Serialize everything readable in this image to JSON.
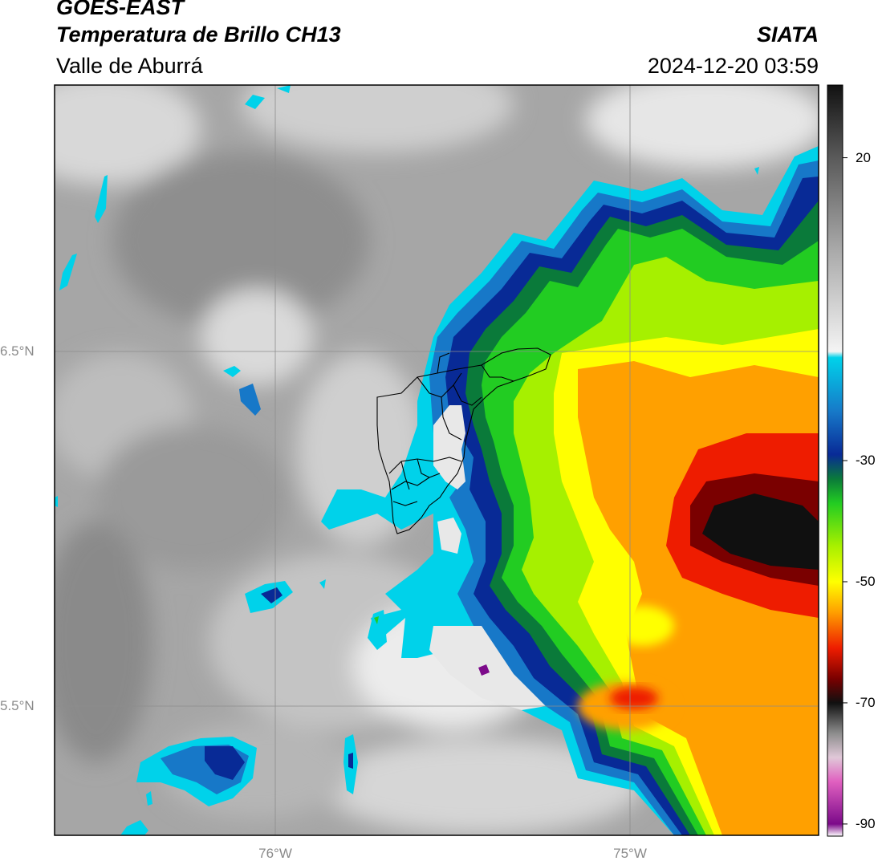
{
  "header": {
    "satellite": "GOES-EAST",
    "product": "Temperatura de Brillo CH13",
    "region": "Valle de Aburrá",
    "organization": "SIATA",
    "timestamp": "2024-12-20 03:59"
  },
  "axes": {
    "lat_ticks": [
      "6.5°N",
      "5.5°N"
    ],
    "lon_ticks": [
      "76°W",
      "75°W"
    ]
  },
  "colorbar": {
    "tick_labels": [
      "20",
      "-30",
      "-50",
      "-70",
      "-90"
    ],
    "tick_values": [
      20,
      -30,
      -50,
      -70,
      -90
    ],
    "range": [
      -92,
      32
    ],
    "stops": [
      {
        "value": 32,
        "color": "#111111"
      },
      {
        "value": 20,
        "color": "#5a5a5a"
      },
      {
        "value": 5,
        "color": "#a8a8a8"
      },
      {
        "value": -12,
        "color": "#f4f4f4"
      },
      {
        "value": -13,
        "color": "#00d2ea"
      },
      {
        "value": -22,
        "color": "#1778c8"
      },
      {
        "value": -29,
        "color": "#082a96"
      },
      {
        "value": -33,
        "color": "#0a7a3a"
      },
      {
        "value": -37,
        "color": "#22cc22"
      },
      {
        "value": -44,
        "color": "#a6f000"
      },
      {
        "value": -50,
        "color": "#ffff00"
      },
      {
        "value": -55,
        "color": "#ffa000"
      },
      {
        "value": -61,
        "color": "#ee1c00"
      },
      {
        "value": -66,
        "color": "#7a0000"
      },
      {
        "value": -70,
        "color": "#101010"
      },
      {
        "value": -75,
        "color": "#8c8c8c"
      },
      {
        "value": -79,
        "color": "#e0c8d8"
      },
      {
        "value": -83,
        "color": "#e060c0"
      },
      {
        "value": -90,
        "color": "#7c0a8a"
      },
      {
        "value": -92,
        "color": "#ffffff"
      }
    ]
  },
  "colors": {
    "cloud_cyan": "#00d2ea",
    "cloud_blue": "#082a96",
    "cloud_green": "#22cc22",
    "cloud_yellow": "#ffff00",
    "cloud_orange": "#ffa000",
    "cloud_red": "#ee1c00",
    "cloud_core": "#101010",
    "background_gray": "#a8a8a8"
  }
}
